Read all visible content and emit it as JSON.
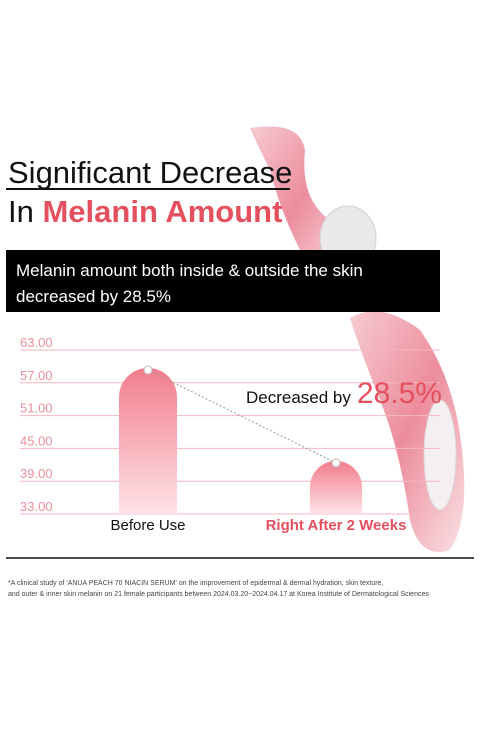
{
  "header": {
    "title_line1": "Significant Decrease",
    "title_line2_prefix": "In",
    "title_line2_highlight": "Melanin Amount"
  },
  "banner": {
    "lines": [
      "Melanin amount both inside & outside the skin",
      "decreased by 28.5%"
    ]
  },
  "chart_data": {
    "type": "bar",
    "categories": [
      "Before Use",
      "Right After 2 Weeks"
    ],
    "values": [
      59.7,
      42.7
    ],
    "color": "#f2808f",
    "ylim": [
      33,
      63
    ],
    "yticks": [
      {
        "value": 33,
        "label": "33.00"
      },
      {
        "value": 39,
        "label": "39.00"
      },
      {
        "value": 45,
        "label": "45.00"
      },
      {
        "value": 51,
        "label": "51.00"
      },
      {
        "value": 57,
        "label": "57.00"
      },
      {
        "value": 63,
        "label": "63.00"
      }
    ],
    "grid": true,
    "annotation": {
      "prefix": "Decreased by",
      "value": "28.5%"
    }
  },
  "footnote": {
    "lines": [
      "*A clinical study of 'ANUA PEACH 70 NIACIN SERUM' on the improvement of epidermal & dermal hydration, skin texture,",
      "and outer & inner skin melanin on 21 female participants between 2024.03.20~2024.04.17 at Korea Institute of Dermatological Sciences"
    ]
  }
}
